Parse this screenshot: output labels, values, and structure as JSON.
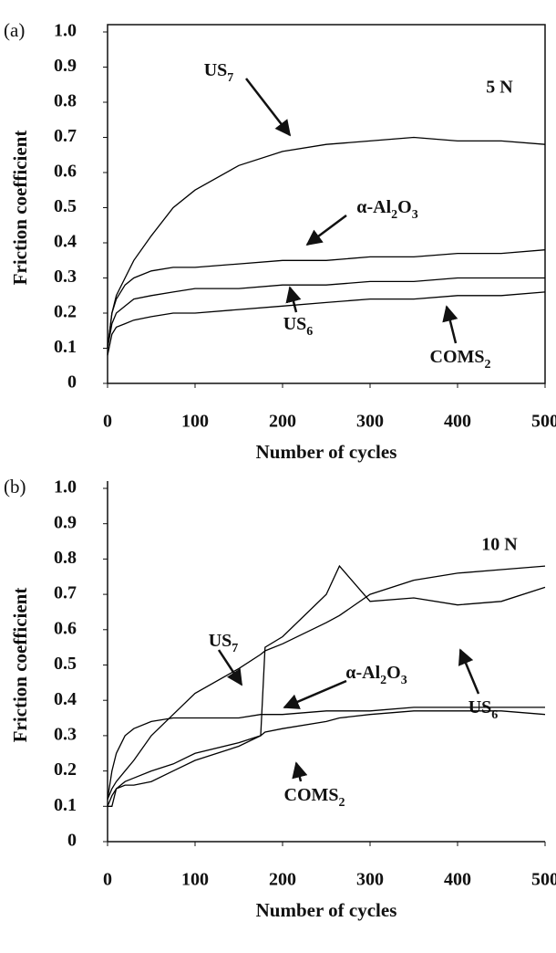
{
  "chart_data": [
    {
      "type": "line",
      "panel_label": "(a)",
      "annotation": "5 N",
      "xlabel": "Number of cycles",
      "ylabel": "Friction coefficient",
      "x": [
        0,
        5,
        10,
        20,
        30,
        50,
        75,
        100,
        150,
        200,
        250,
        300,
        350,
        400,
        450,
        500
      ],
      "xlim": [
        0,
        500
      ],
      "xticks": [
        0,
        100,
        200,
        300,
        400,
        500
      ],
      "ylim": [
        0,
        1
      ],
      "yticks": [
        0,
        0.1,
        0.2,
        0.3,
        0.4,
        0.5,
        0.6,
        0.7,
        0.8,
        0.9,
        {
          "value": 1,
          "label": "1.0"
        }
      ],
      "series": [
        {
          "name": "US7",
          "color": "#000000",
          "values": [
            0.1,
            0.2,
            0.25,
            0.3,
            0.35,
            0.42,
            0.5,
            0.55,
            0.62,
            0.66,
            0.68,
            0.69,
            0.7,
            0.69,
            0.69,
            0.68
          ]
        },
        {
          "name": "α-Al2O3",
          "color": "#000000",
          "values": [
            0.1,
            0.2,
            0.24,
            0.28,
            0.3,
            0.32,
            0.33,
            0.33,
            0.34,
            0.35,
            0.35,
            0.36,
            0.36,
            0.37,
            0.37,
            0.38
          ]
        },
        {
          "name": "US6",
          "color": "#000000",
          "values": [
            0.1,
            0.17,
            0.2,
            0.22,
            0.24,
            0.25,
            0.26,
            0.27,
            0.27,
            0.28,
            0.28,
            0.29,
            0.29,
            0.3,
            0.3,
            0.3
          ]
        },
        {
          "name": "COMS2",
          "color": "#000000",
          "values": [
            0.08,
            0.14,
            0.16,
            0.17,
            0.18,
            0.19,
            0.2,
            0.2,
            0.21,
            0.22,
            0.23,
            0.24,
            0.24,
            0.25,
            0.25,
            0.26
          ]
        }
      ]
    },
    {
      "type": "line",
      "panel_label": "(b)",
      "annotation": "10 N",
      "xlabel": "Number of cycles",
      "ylabel": "Friction coefficient",
      "x": [
        0,
        5,
        10,
        20,
        30,
        50,
        75,
        100,
        150,
        175,
        180,
        200,
        250,
        265,
        300,
        350,
        400,
        450,
        500
      ],
      "xlim": [
        0,
        500
      ],
      "xticks": [
        0,
        100,
        200,
        300,
        400,
        500
      ],
      "ylim": [
        0,
        1
      ],
      "yticks": [
        0,
        0.1,
        0.2,
        0.3,
        0.4,
        0.5,
        0.6,
        0.7,
        0.8,
        0.9,
        {
          "value": 1,
          "label": "1.0"
        }
      ],
      "series": [
        {
          "name": "US7",
          "color": "#000000",
          "values": [
            0.12,
            0.15,
            0.17,
            0.2,
            0.23,
            0.3,
            0.36,
            0.42,
            0.49,
            0.53,
            0.54,
            0.56,
            0.62,
            0.64,
            0.7,
            0.74,
            0.76,
            0.77,
            0.78
          ]
        },
        {
          "name": "α-Al2O3",
          "color": "#000000",
          "values": [
            0.12,
            0.2,
            0.25,
            0.3,
            0.32,
            0.34,
            0.35,
            0.35,
            0.35,
            0.36,
            0.36,
            0.36,
            0.37,
            0.37,
            0.37,
            0.38,
            0.38,
            0.38,
            0.38
          ]
        },
        {
          "name": "US6",
          "color": "#000000",
          "values": [
            0.1,
            0.1,
            0.15,
            0.16,
            0.16,
            0.17,
            0.2,
            0.23,
            0.27,
            0.3,
            0.55,
            0.58,
            0.7,
            0.78,
            0.68,
            0.69,
            0.67,
            0.68,
            0.72
          ]
        },
        {
          "name": "COMS2",
          "color": "#000000",
          "values": [
            0.1,
            0.13,
            0.15,
            0.17,
            0.18,
            0.2,
            0.22,
            0.25,
            0.28,
            0.3,
            0.31,
            0.32,
            0.34,
            0.35,
            0.36,
            0.37,
            0.37,
            0.37,
            0.36
          ]
        }
      ]
    }
  ]
}
